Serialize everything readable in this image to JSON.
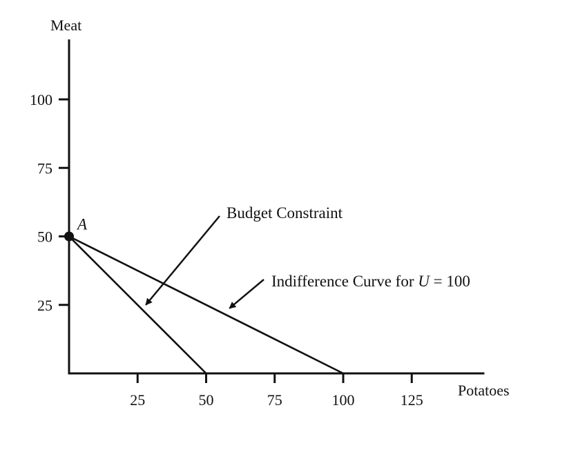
{
  "chart_data": {
    "type": "line",
    "xlabel": "Potatoes",
    "ylabel": "Meat",
    "xlim": [
      0,
      152
    ],
    "ylim": [
      0,
      122
    ],
    "x_ticks": [
      25,
      50,
      75,
      100,
      125
    ],
    "y_ticks": [
      25,
      50,
      75,
      100
    ],
    "series": [
      {
        "key": "budget",
        "x": [
          0,
          50
        ],
        "y": [
          50,
          0
        ]
      },
      {
        "key": "indifference",
        "x": [
          0,
          100
        ],
        "y": [
          50,
          0
        ]
      }
    ],
    "point": {
      "label": "A",
      "x": 0,
      "y": 50
    },
    "annotations": [
      {
        "key": "budget",
        "text": "Budget Constraint",
        "target": [
          28,
          25
        ]
      },
      {
        "key": "indifference",
        "text_before": "Indifference Curve for ",
        "text_var": "U",
        "text_after": " = 100",
        "target": [
          58,
          24
        ]
      }
    ]
  }
}
